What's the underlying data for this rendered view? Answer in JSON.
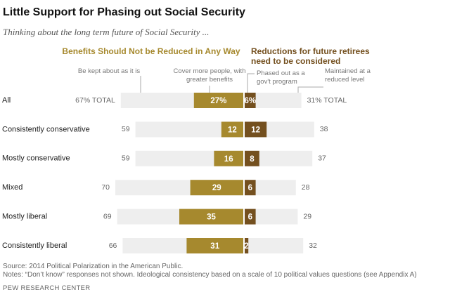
{
  "chart_data": {
    "type": "diverging_bar",
    "title": "Little Support for Phasing out Social Security",
    "subtitle": "Thinking about the long term future of Social Security ...",
    "categories": [
      "All",
      "Consistently conservative",
      "Mostly conservative",
      "Mixed",
      "Mostly liberal",
      "Consistently liberal"
    ],
    "groups": [
      {
        "label": "Benefits Should Not be Reduced in Any Way",
        "side": "left",
        "color": "#a6892e"
      },
      {
        "label": "Reductions for future retirees need to be considered",
        "side": "right",
        "color": "#74501f"
      }
    ],
    "series": [
      {
        "name": "Be kept about as it is",
        "role": "total",
        "side": "left",
        "color": "#eeeeee",
        "values": [
          67,
          59,
          59,
          70,
          69,
          66
        ],
        "value_labels": [
          "67% TOTAL",
          "59",
          "59",
          "70",
          "69",
          "66"
        ]
      },
      {
        "name": "Cover more people, with greater benefits",
        "role": "part",
        "side": "left",
        "color": "#a6892e",
        "values": [
          27,
          12,
          16,
          29,
          35,
          31
        ],
        "value_labels": [
          "27%",
          "12",
          "16",
          "29",
          "35",
          "31"
        ]
      },
      {
        "name": "Phased out as a gov't program",
        "role": "part",
        "side": "right",
        "color": "#74501f",
        "values": [
          6,
          12,
          8,
          6,
          6,
          2
        ],
        "value_labels": [
          "6%",
          "12",
          "8",
          "6",
          "6",
          "2"
        ]
      },
      {
        "name": "Maintained at a reduced level",
        "role": "total",
        "side": "right",
        "color": "#eeeeee",
        "values": [
          31,
          38,
          37,
          28,
          29,
          32
        ],
        "value_labels": [
          "31% TOTAL",
          "38",
          "37",
          "28",
          "29",
          "32"
        ]
      }
    ],
    "source": "Source: 2014 Political Polarization in the American Public.",
    "note": "Notes: “Don’t know” responses not shown. Ideological consistency based on a scale of 10 political values questions (see Appendix A)",
    "credit": "PEW RESEARCH CENTER"
  }
}
